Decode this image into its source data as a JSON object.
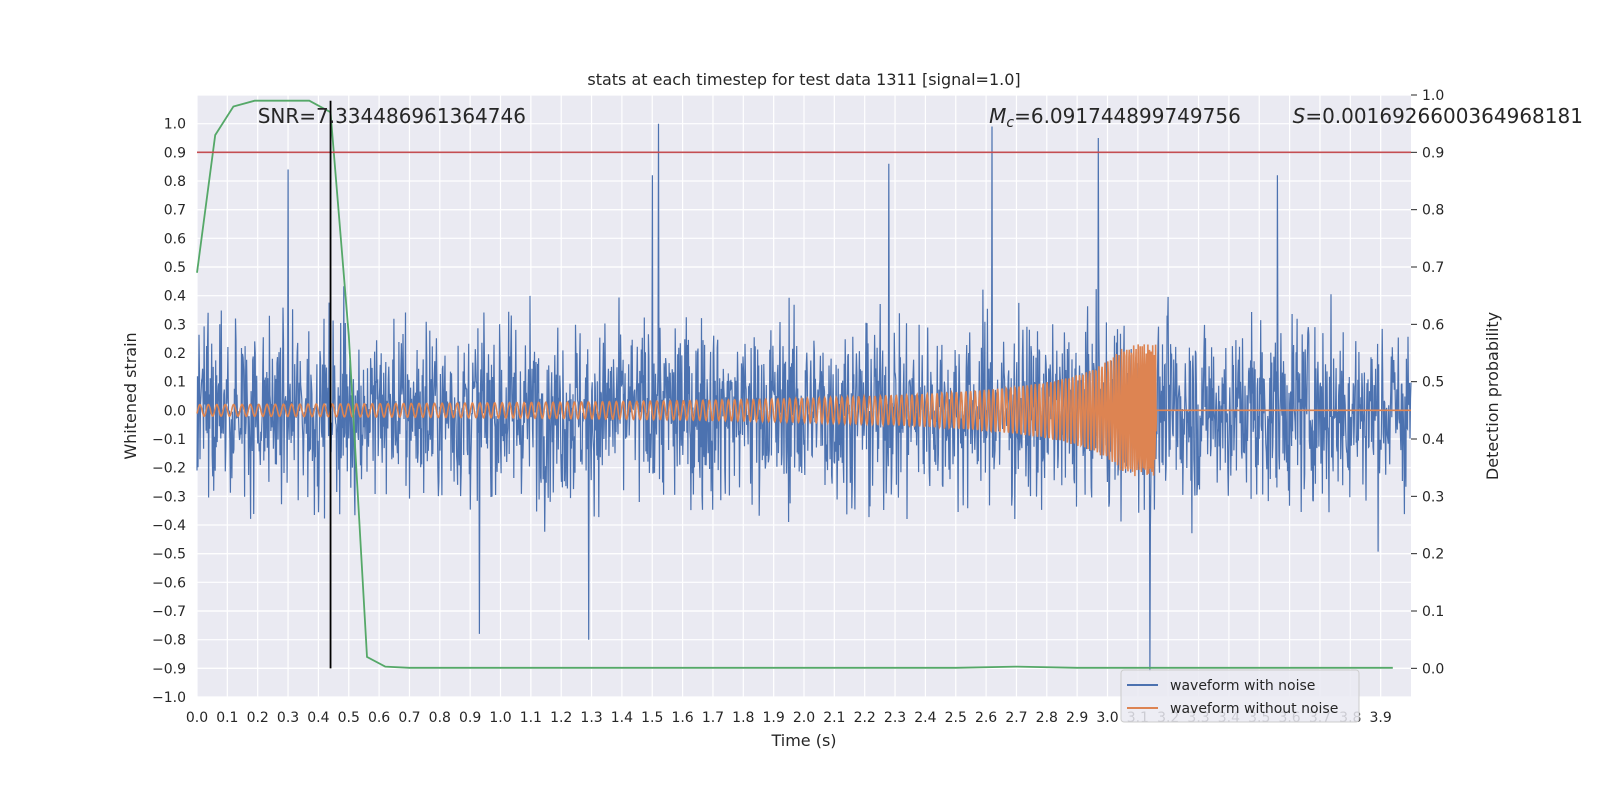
{
  "chart_data": {
    "type": "line",
    "title": "stats at each timestep for test data 1311 [signal=1.0]",
    "xlabel": "Time (s)",
    "ylabel": "Whitened strain",
    "ylabel_right": "Detection probability",
    "xlim": [
      0.0,
      4.0
    ],
    "ylim": [
      -1.0,
      1.1
    ],
    "ylim_right": [
      -0.05,
      1.0
    ],
    "grid": true,
    "legend_position": "lower right",
    "x_ticks": [
      "0.0",
      "0.1",
      "0.2",
      "0.3",
      "0.4",
      "0.5",
      "0.6",
      "0.7",
      "0.8",
      "0.9",
      "1.0",
      "1.1",
      "1.2",
      "1.3",
      "1.4",
      "1.5",
      "1.6",
      "1.7",
      "1.8",
      "1.9",
      "2.0",
      "2.1",
      "2.2",
      "2.3",
      "2.4",
      "2.5",
      "2.6",
      "2.7",
      "2.8",
      "2.9",
      "3.0",
      "3.1",
      "3.2",
      "3.3",
      "3.4",
      "3.5",
      "3.6",
      "3.7",
      "3.8",
      "3.9"
    ],
    "y_ticks": [
      "-1.0",
      "-0.9",
      "-0.8",
      "-0.7",
      "-0.6",
      "-0.5",
      "-0.4",
      "-0.3",
      "-0.2",
      "-0.1",
      "0.0",
      "0.1",
      "0.2",
      "0.3",
      "0.4",
      "0.5",
      "0.6",
      "0.7",
      "0.8",
      "0.9",
      "1.0"
    ],
    "y_ticks_right": [
      "0.0",
      "0.1",
      "0.2",
      "0.3",
      "0.4",
      "0.5",
      "0.6",
      "0.7",
      "0.8",
      "0.9",
      "1.0"
    ],
    "annotations": {
      "snr": "SNR=7.334486961364746",
      "mc_symbol": "M",
      "mc_sub": "c",
      "mc_value": "=6.091744899749756",
      "s_symbol": "S",
      "s_value": "=0.0016926600364968181"
    },
    "series": [
      {
        "name": "waveform with noise",
        "color": "#4c72b0",
        "axis": "left",
        "description_values": "noise amplitude roughly within [-0.8, 1.0]",
        "peaks": [
          {
            "x": 1.52,
            "y": 1.0
          },
          {
            "x": 2.62,
            "y": 0.99
          },
          {
            "x": 2.97,
            "y": 0.95
          },
          {
            "x": 2.28,
            "y": 0.86
          },
          {
            "x": 0.3,
            "y": 0.84
          },
          {
            "x": 1.5,
            "y": 0.82
          },
          {
            "x": 3.56,
            "y": 0.82
          },
          {
            "x": 3.14,
            "y": -0.91
          },
          {
            "x": 1.29,
            "y": -0.8
          },
          {
            "x": 0.93,
            "y": -0.78
          }
        ]
      },
      {
        "name": "waveform without noise",
        "color": "#dd8452",
        "axis": "left",
        "chirp_start_amplitude": 0.02,
        "chirp_peak_amplitude": 0.23,
        "chirp_end_time": 3.16
      },
      {
        "name": "detection probability",
        "color": "#55a868",
        "axis": "right",
        "x": [
          0.0,
          0.06,
          0.12,
          0.19,
          0.25,
          0.31,
          0.37,
          0.44,
          0.5,
          0.56,
          0.62,
          0.7,
          0.9,
          1.5,
          2.0,
          2.5,
          2.7,
          2.9,
          3.2,
          3.5,
          3.94
        ],
        "y": [
          0.69,
          0.93,
          0.98,
          0.99,
          0.99,
          0.99,
          0.99,
          0.97,
          0.58,
          0.02,
          0.003,
          0.001,
          0.001,
          0.001,
          0.001,
          0.001,
          0.003,
          0.001,
          0.001,
          0.001,
          0.001
        ]
      }
    ],
    "threshold": {
      "axis": "right",
      "value": 0.9,
      "color": "#c44e52"
    },
    "vline": {
      "x": 0.44,
      "ymin_right": 0.0,
      "ymax_right": 0.99,
      "color": "#000000"
    },
    "legend": [
      {
        "label": "waveform with noise",
        "color": "#4c72b0"
      },
      {
        "label": "waveform without noise",
        "color": "#dd8452"
      }
    ]
  }
}
